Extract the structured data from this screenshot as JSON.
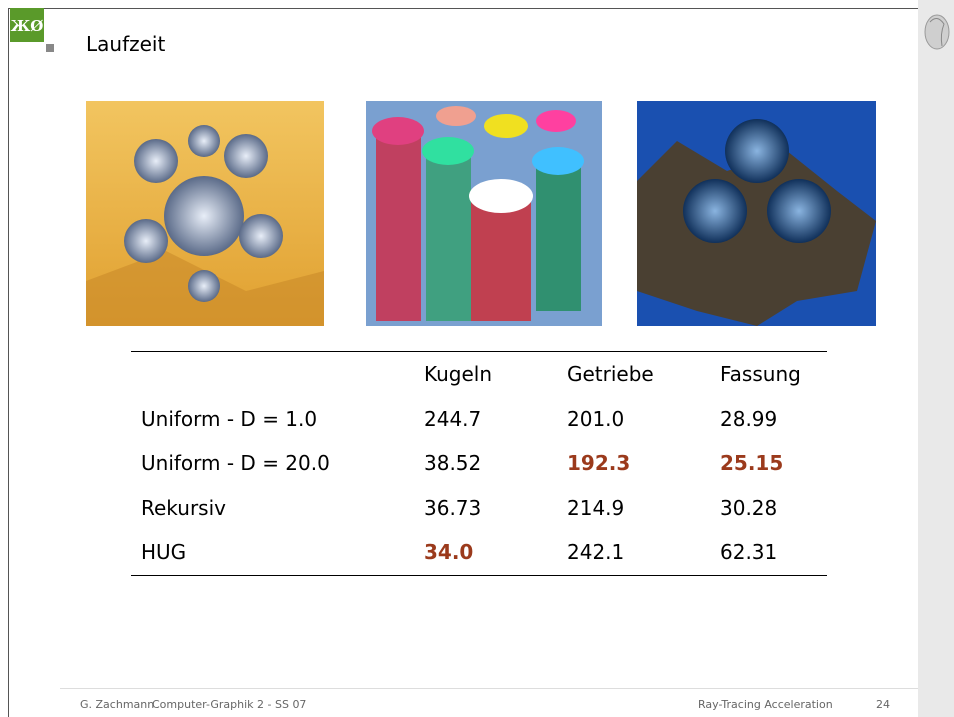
{
  "header": {
    "title": "Laufzeit"
  },
  "table": {
    "columns": [
      "",
      "Kugeln",
      "Getriebe",
      "Fassung"
    ],
    "rows": [
      [
        {
          "text": "Uniform - D = 1.0",
          "bold": false
        },
        {
          "text": "244.7",
          "bold": false
        },
        {
          "text": "201.0",
          "bold": false
        },
        {
          "text": "28.99",
          "bold": false
        }
      ],
      [
        {
          "text": "Uniform - D = 20.0",
          "bold": false
        },
        {
          "text": "38.52",
          "bold": false
        },
        {
          "text": "192.3",
          "bold": true
        },
        {
          "text": "25.15",
          "bold": true
        }
      ],
      [
        {
          "text": "Rekursiv",
          "bold": false
        },
        {
          "text": "36.73",
          "bold": false
        },
        {
          "text": "214.9",
          "bold": false
        },
        {
          "text": "30.28",
          "bold": false
        }
      ],
      [
        {
          "text": "HUG",
          "bold": false
        },
        {
          "text": "34.0",
          "bold": true
        },
        {
          "text": "242.1",
          "bold": false
        },
        {
          "text": "62.31",
          "bold": false
        }
      ]
    ]
  },
  "footer": {
    "author": "G. Zachmann",
    "course": "Computer-Graphik 2 - SS 07",
    "topic": "Ray-Tracing Acceleration",
    "page": "24"
  }
}
